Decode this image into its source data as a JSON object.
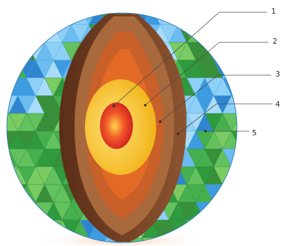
{
  "diagram": {
    "callouts": [
      {
        "label": "1",
        "part": "inner-core"
      },
      {
        "label": "2",
        "part": "outer-core"
      },
      {
        "label": "3",
        "part": "lower-mantle"
      },
      {
        "label": "4",
        "part": "upper-mantle"
      },
      {
        "label": "5",
        "part": "crust"
      }
    ],
    "colors": {
      "ocean": "#5aaee8",
      "land": "#3fa84a",
      "inner_core": "#e8282a",
      "outer_core": "#f4c21e",
      "lower_mantle": "#e36a24",
      "upper_mantle": "#c9602a",
      "crust": "#a8693c",
      "cut_face": "#7a4426"
    }
  }
}
